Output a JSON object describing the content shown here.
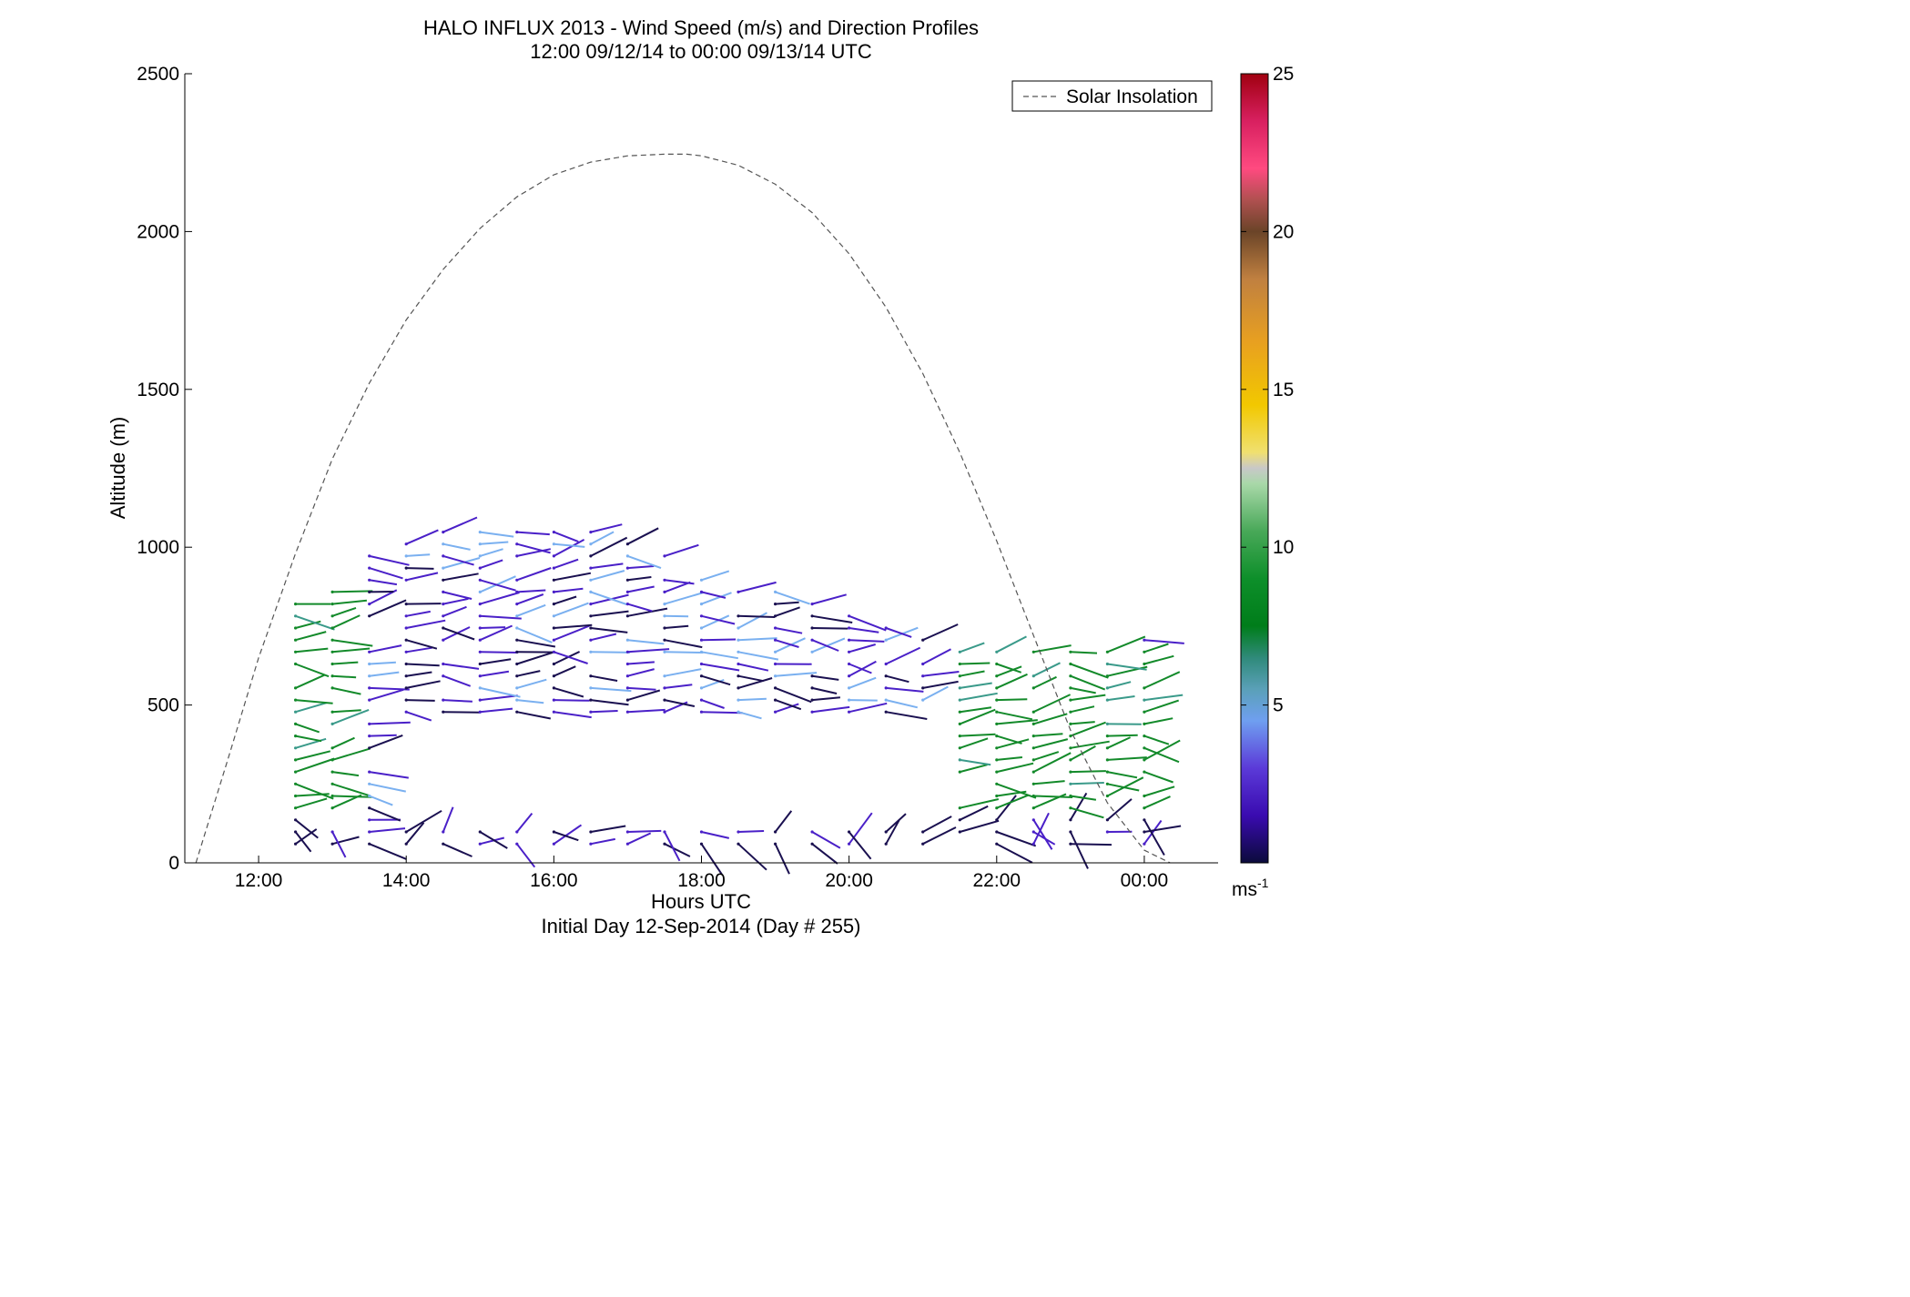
{
  "chart_data": {
    "type": "scatter",
    "title": "HALO INFLUX 2013 - Wind Speed (m/s) and Direction Profiles",
    "subtitle": "12:00 09/12/14 to 00:00 09/13/14  UTC",
    "xlabel": "Hours UTC",
    "xlabel_sub": "Initial Day 12-Sep-2014 (Day # 255)",
    "ylabel": "Altitude (m)",
    "xlim": [
      11.0,
      25.0
    ],
    "ylim": [
      0,
      2500
    ],
    "x_ticks": [
      {
        "value": 12,
        "label": "12:00"
      },
      {
        "value": 14,
        "label": "14:00"
      },
      {
        "value": 16,
        "label": "16:00"
      },
      {
        "value": 18,
        "label": "18:00"
      },
      {
        "value": 20,
        "label": "20:00"
      },
      {
        "value": 22,
        "label": "22:00"
      },
      {
        "value": 24,
        "label": "00:00"
      }
    ],
    "y_ticks": [
      0,
      500,
      1000,
      1500,
      2000,
      2500
    ],
    "legend": {
      "position": "top-right",
      "entries": [
        "Solar Insolation"
      ]
    },
    "colorbar": {
      "min": 0,
      "max": 25,
      "ticks": [
        5,
        10,
        15,
        20,
        25
      ],
      "unit_label": "ms",
      "unit_exp": "-1"
    },
    "grid": false,
    "series": [
      {
        "name": "Solar Insolation",
        "style": "dashed",
        "x": [
          11.15,
          11.6,
          12.0,
          12.5,
          13.0,
          13.5,
          14.0,
          14.5,
          15.0,
          15.5,
          16.0,
          16.5,
          17.0,
          17.5,
          17.8,
          18.0,
          18.5,
          19.0,
          19.5,
          20.0,
          20.5,
          21.0,
          21.5,
          22.0,
          22.5,
          23.0,
          23.5,
          24.0,
          24.35
        ],
        "y": [
          0,
          340,
          650,
          980,
          1280,
          1520,
          1720,
          1880,
          2010,
          2110,
          2180,
          2220,
          2240,
          2245,
          2245,
          2240,
          2210,
          2150,
          2060,
          1930,
          1760,
          1550,
          1300,
          1020,
          720,
          420,
          190,
          40,
          0
        ]
      }
    ]
  }
}
